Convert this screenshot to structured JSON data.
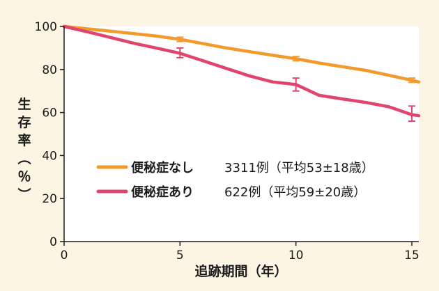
{
  "chart_data": {
    "type": "line",
    "xlabel": "追跡期間（年）",
    "ylabel": "生存率（％）",
    "xlim": [
      0,
      15.3
    ],
    "ylim": [
      0,
      100
    ],
    "x_ticks": [
      0,
      5,
      10,
      15
    ],
    "y_ticks": [
      0,
      20,
      40,
      60,
      80,
      100
    ],
    "grid": false,
    "legend_position": "center-left",
    "background": "#ffffff",
    "series": [
      {
        "name": "便秘症なし",
        "detail": "3311例（平均53±18歳）",
        "color": "#f39a2d",
        "x": [
          0,
          1,
          2,
          3,
          4,
          5,
          6,
          7,
          8,
          9,
          10,
          11,
          12,
          13,
          14,
          15,
          15.3
        ],
        "y": [
          100,
          98.9,
          97.8,
          96.7,
          95.5,
          94,
          92,
          90,
          88.3,
          86.6,
          85,
          83,
          81.3,
          79.6,
          77.3,
          75,
          74.2
        ],
        "error_bars": [
          {
            "x": 5,
            "low": 93,
            "high": 95
          },
          {
            "x": 10,
            "low": 84,
            "high": 86
          },
          {
            "x": 15,
            "low": 74,
            "high": 76
          }
        ]
      },
      {
        "name": "便秘症あり",
        "detail": "622例（平均59±20歳）",
        "color": "#e0456e",
        "x": [
          0,
          1,
          2,
          3,
          4,
          5,
          6,
          7,
          8,
          9,
          10,
          11,
          12,
          13,
          14,
          15,
          15.3
        ],
        "y": [
          100,
          97.5,
          94.9,
          92.2,
          89.9,
          87.5,
          84,
          80.5,
          77,
          74.2,
          73,
          68,
          66.3,
          64.7,
          62.7,
          59,
          58.5
        ],
        "error_bars": [
          {
            "x": 5,
            "low": 85.5,
            "high": 90
          },
          {
            "x": 10,
            "low": 70,
            "high": 76
          },
          {
            "x": 15,
            "low": 56,
            "high": 63
          }
        ]
      }
    ]
  }
}
